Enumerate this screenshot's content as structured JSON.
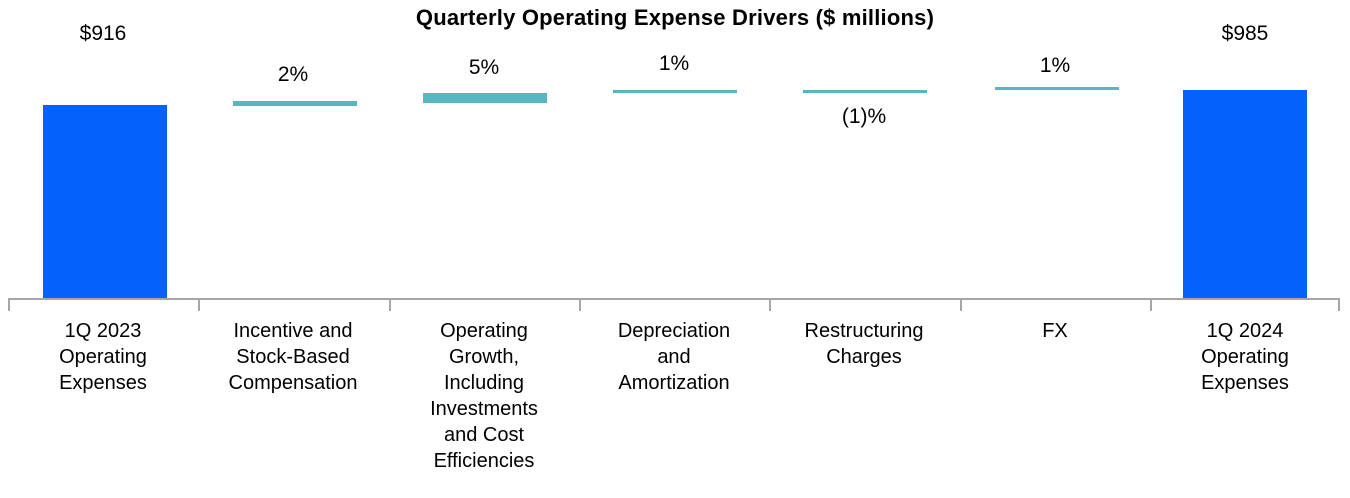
{
  "chart": {
    "title": "Quarterly Operating Expense Drivers ($ millions)",
    "colors": {
      "endpoint_bar": "#0561FC",
      "driver_bar": "#57B6BE",
      "axis": "#A6A6A6",
      "text": "#000000"
    },
    "columns": [
      {
        "category": "1Q 2023\nOperating\nExpenses",
        "value_label": "$916"
      },
      {
        "category": "Incentive and\nStock-Based\nCompensation",
        "value_label": "2%"
      },
      {
        "category": "Operating\nGrowth,\nIncluding\nInvestments\nand Cost\nEfficiencies",
        "value_label": "5%"
      },
      {
        "category": "Depreciation\nand\nAmortization",
        "value_label": "1%"
      },
      {
        "category": "Restructuring\nCharges",
        "value_label": "(1)%"
      },
      {
        "category": "FX",
        "value_label": "1%"
      },
      {
        "category": "1Q 2024\nOperating\nExpenses",
        "value_label": "$985"
      }
    ]
  },
  "chart_data": {
    "type": "bar",
    "subtype": "waterfall",
    "title": "Quarterly Operating Expense Drivers ($ millions)",
    "categories": [
      "1Q 2023 Operating Expenses",
      "Incentive and Stock-Based Compensation",
      "Operating Growth, Including Investments and Cost Efficiencies",
      "Depreciation and Amortization",
      "Restructuring Charges",
      "FX",
      "1Q 2024 Operating Expenses"
    ],
    "values": [
      916,
      2,
      5,
      1,
      -1,
      1,
      985
    ],
    "value_labels": [
      "$916",
      "2%",
      "5%",
      "1%",
      "(1)%",
      "1%",
      "$985"
    ],
    "units": {
      "endpoint_bars": "$ millions",
      "driver_bars": "percent change vs prior year"
    },
    "series_roles": [
      "endpoint",
      "increase",
      "increase",
      "increase",
      "decrease",
      "increase",
      "endpoint"
    ],
    "xlabel": "",
    "ylabel": "",
    "legend": false,
    "grid": false,
    "baseline_y_value": 0
  }
}
